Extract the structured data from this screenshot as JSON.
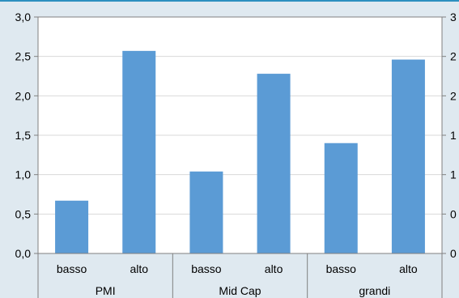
{
  "chart_data": {
    "type": "bar",
    "groups": [
      "PMI",
      "Mid Cap",
      "grandi"
    ],
    "categories": [
      {
        "group": "PMI",
        "label": "basso",
        "value": 0.67
      },
      {
        "group": "PMI",
        "label": "alto",
        "value": 2.57
      },
      {
        "group": "Mid Cap",
        "label": "basso",
        "value": 1.04
      },
      {
        "group": "Mid Cap",
        "label": "alto",
        "value": 2.28
      },
      {
        "group": "grandi",
        "label": "basso",
        "value": 1.4
      },
      {
        "group": "grandi",
        "label": "alto",
        "value": 2.46
      }
    ],
    "ylim": [
      0,
      3
    ],
    "yticks": [
      "0,0",
      "0,5",
      "1,0",
      "1,5",
      "2,0",
      "2,5",
      "3,0"
    ],
    "right_axis_visible_ticks": [
      "0",
      "0",
      "1",
      "1",
      "2",
      "2",
      "3"
    ],
    "grid": true,
    "colors": {
      "bar": "#5b9bd5",
      "background": "#dfe9f0",
      "plot": "#ffffff",
      "grid": "#d9d9d9",
      "accent": "#2d8fbf"
    }
  }
}
